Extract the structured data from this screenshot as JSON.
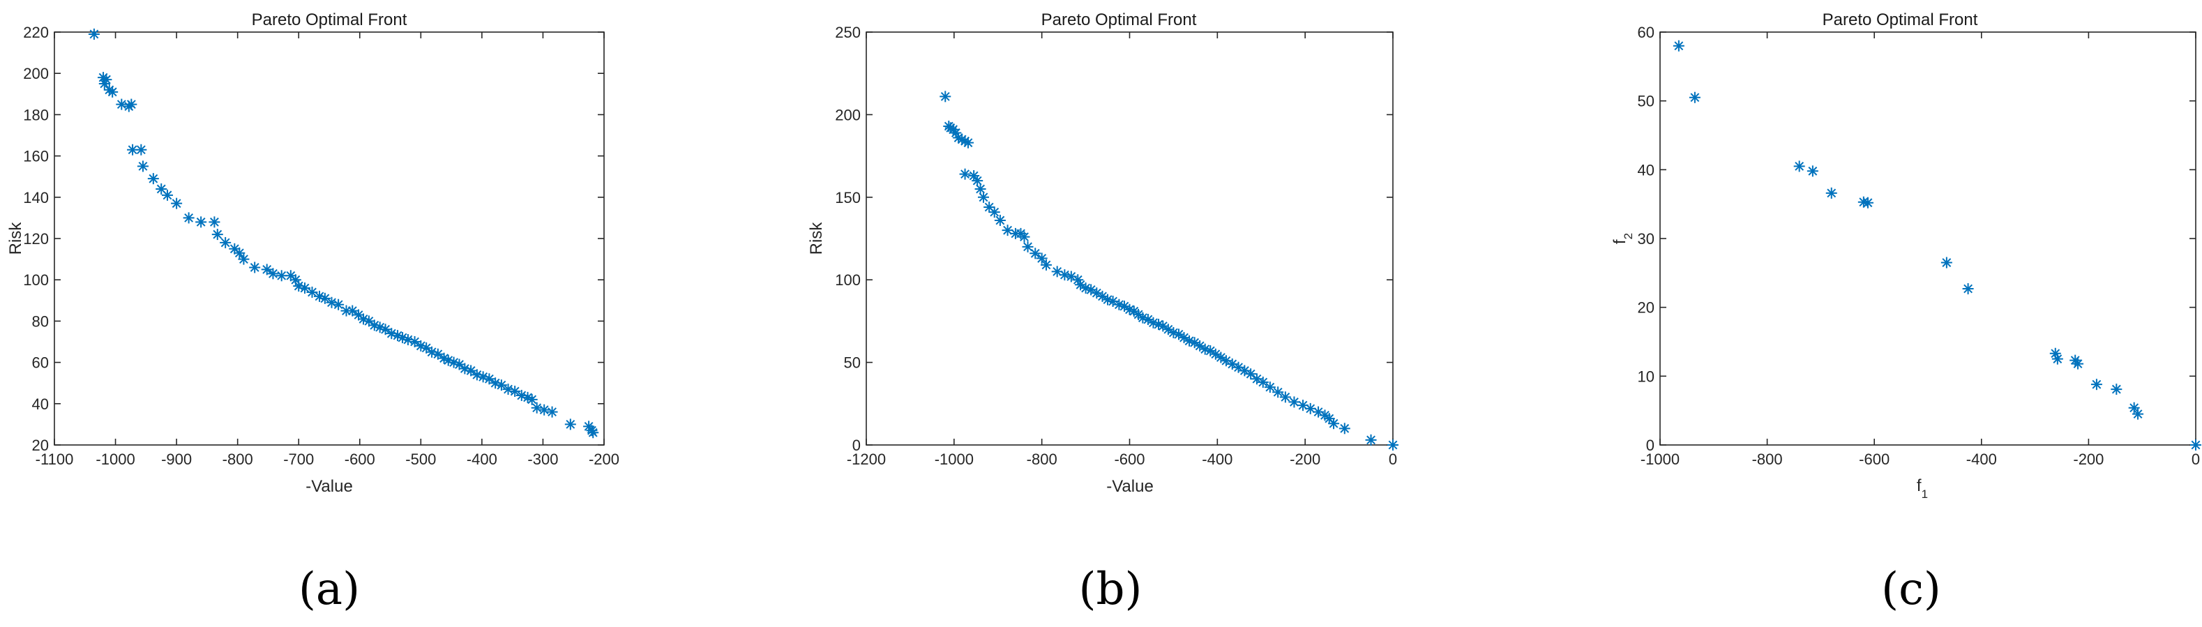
{
  "chart_data": [
    {
      "id": "a",
      "type": "scatter",
      "title": "Pareto Optimal Front",
      "xlabel": "-Value",
      "ylabel": "Risk",
      "caption": "(a)",
      "xlim": [
        -1100,
        -200
      ],
      "ylim": [
        20,
        220
      ],
      "xticks": [
        -1100,
        -1000,
        -900,
        -800,
        -700,
        -600,
        -500,
        -400,
        -300,
        -200
      ],
      "yticks": [
        20,
        40,
        60,
        80,
        100,
        120,
        140,
        160,
        180,
        200,
        220
      ],
      "marker_color": "#0072BD",
      "points": [
        [
          -1035,
          219
        ],
        [
          -1020,
          198
        ],
        [
          -1015,
          197
        ],
        [
          -1018,
          195
        ],
        [
          -1010,
          192
        ],
        [
          -1005,
          191
        ],
        [
          -990,
          185
        ],
        [
          -978,
          184
        ],
        [
          -974,
          185
        ],
        [
          -972,
          163
        ],
        [
          -958,
          163
        ],
        [
          -955,
          155
        ],
        [
          -938,
          149
        ],
        [
          -925,
          144
        ],
        [
          -915,
          141
        ],
        [
          -900,
          137
        ],
        [
          -880,
          130
        ],
        [
          -860,
          128
        ],
        [
          -838,
          128
        ],
        [
          -833,
          122
        ],
        [
          -820,
          118
        ],
        [
          -805,
          115
        ],
        [
          -797,
          113
        ],
        [
          -790,
          110
        ],
        [
          -772,
          106
        ],
        [
          -752,
          105
        ],
        [
          -742,
          103
        ],
        [
          -728,
          102
        ],
        [
          -713,
          102
        ],
        [
          -705,
          100
        ],
        [
          -700,
          97
        ],
        [
          -690,
          96
        ],
        [
          -678,
          94
        ],
        [
          -666,
          92
        ],
        [
          -657,
          91
        ],
        [
          -646,
          89
        ],
        [
          -635,
          88
        ],
        [
          -622,
          85
        ],
        [
          -612,
          85
        ],
        [
          -602,
          83
        ],
        [
          -594,
          81
        ],
        [
          -585,
          80
        ],
        [
          -576,
          78
        ],
        [
          -567,
          77
        ],
        [
          -558,
          76
        ],
        [
          -548,
          74
        ],
        [
          -538,
          73
        ],
        [
          -530,
          72
        ],
        [
          -521,
          71
        ],
        [
          -510,
          70
        ],
        [
          -500,
          68
        ],
        [
          -491,
          67
        ],
        [
          -482,
          65
        ],
        [
          -472,
          64
        ],
        [
          -462,
          62
        ],
        [
          -455,
          61
        ],
        [
          -446,
          60
        ],
        [
          -437,
          59
        ],
        [
          -428,
          57
        ],
        [
          -418,
          56
        ],
        [
          -408,
          54
        ],
        [
          -398,
          53
        ],
        [
          -388,
          52
        ],
        [
          -378,
          50
        ],
        [
          -368,
          49
        ],
        [
          -357,
          47
        ],
        [
          -346,
          46
        ],
        [
          -335,
          44
        ],
        [
          -325,
          43
        ],
        [
          -318,
          42
        ],
        [
          -310,
          38
        ],
        [
          -298,
          37
        ],
        [
          -285,
          36
        ],
        [
          -255,
          30
        ],
        [
          -225,
          29
        ],
        [
          -220,
          27
        ],
        [
          -218,
          26
        ]
      ]
    },
    {
      "id": "b",
      "type": "scatter",
      "title": "Pareto Optimal Front",
      "xlabel": "-Value",
      "ylabel": "Risk",
      "caption": "(b)",
      "xlim": [
        -1200,
        0
      ],
      "ylim": [
        0,
        250
      ],
      "xticks": [
        -1200,
        -1000,
        -800,
        -600,
        -400,
        -200,
        0
      ],
      "yticks": [
        0,
        50,
        100,
        150,
        200,
        250
      ],
      "marker_color": "#0072BD",
      "points": [
        [
          -1020,
          211
        ],
        [
          -1012,
          193
        ],
        [
          -1008,
          192
        ],
        [
          -1002,
          191
        ],
        [
          -996,
          189
        ],
        [
          -990,
          186
        ],
        [
          -982,
          185
        ],
        [
          -975,
          184
        ],
        [
          -968,
          183
        ],
        [
          -975,
          164
        ],
        [
          -955,
          163
        ],
        [
          -947,
          160
        ],
        [
          -940,
          155
        ],
        [
          -933,
          150
        ],
        [
          -920,
          144
        ],
        [
          -908,
          141
        ],
        [
          -895,
          136
        ],
        [
          -878,
          130
        ],
        [
          -860,
          128
        ],
        [
          -848,
          128
        ],
        [
          -840,
          126
        ],
        [
          -832,
          120
        ],
        [
          -815,
          116
        ],
        [
          -800,
          113
        ],
        [
          -790,
          109
        ],
        [
          -765,
          105
        ],
        [
          -748,
          103
        ],
        [
          -733,
          102
        ],
        [
          -718,
          100
        ],
        [
          -712,
          97
        ],
        [
          -700,
          95
        ],
        [
          -688,
          94
        ],
        [
          -675,
          92
        ],
        [
          -662,
          90
        ],
        [
          -650,
          88
        ],
        [
          -638,
          87
        ],
        [
          -624,
          85
        ],
        [
          -612,
          84
        ],
        [
          -600,
          82
        ],
        [
          -590,
          81
        ],
        [
          -580,
          79
        ],
        [
          -570,
          77
        ],
        [
          -558,
          76
        ],
        [
          -546,
          74
        ],
        [
          -534,
          73
        ],
        [
          -524,
          72
        ],
        [
          -512,
          70
        ],
        [
          -500,
          68
        ],
        [
          -488,
          67
        ],
        [
          -476,
          65
        ],
        [
          -464,
          63
        ],
        [
          -452,
          62
        ],
        [
          -440,
          60
        ],
        [
          -428,
          58
        ],
        [
          -416,
          57
        ],
        [
          -404,
          55
        ],
        [
          -392,
          53
        ],
        [
          -380,
          51
        ],
        [
          -366,
          49
        ],
        [
          -352,
          47
        ],
        [
          -338,
          45
        ],
        [
          -324,
          43
        ],
        [
          -310,
          40
        ],
        [
          -296,
          38
        ],
        [
          -280,
          35
        ],
        [
          -262,
          32
        ],
        [
          -245,
          29
        ],
        [
          -225,
          26
        ],
        [
          -205,
          24
        ],
        [
          -188,
          22
        ],
        [
          -170,
          20
        ],
        [
          -155,
          18
        ],
        [
          -145,
          16
        ],
        [
          -135,
          13
        ],
        [
          -110,
          10
        ],
        [
          -50,
          3
        ],
        [
          0,
          0
        ]
      ]
    },
    {
      "id": "c",
      "type": "scatter",
      "title": "Pareto Optimal Front",
      "xlabel": "f",
      "xlabel_sub": "1",
      "ylabel": "f",
      "ylabel_sub": "2",
      "caption": "(c)",
      "xlim": [
        -1000,
        0
      ],
      "ylim": [
        0,
        60
      ],
      "xticks": [
        -1000,
        -800,
        -600,
        -400,
        -200,
        0
      ],
      "yticks": [
        0,
        10,
        20,
        30,
        40,
        50,
        60
      ],
      "marker_color": "#0072BD",
      "points": [
        [
          -965,
          58
        ],
        [
          -935,
          50.5
        ],
        [
          -740,
          40.5
        ],
        [
          -715,
          39.8
        ],
        [
          -680,
          36.6
        ],
        [
          -620,
          35.3
        ],
        [
          -612,
          35.2
        ],
        [
          -465,
          26.5
        ],
        [
          -425,
          22.7
        ],
        [
          -262,
          13.3
        ],
        [
          -258,
          12.5
        ],
        [
          -225,
          12.3
        ],
        [
          -220,
          11.8
        ],
        [
          -185,
          8.8
        ],
        [
          -148,
          8.1
        ],
        [
          -115,
          5.4
        ],
        [
          -108,
          4.5
        ],
        [
          0,
          0
        ]
      ]
    }
  ]
}
